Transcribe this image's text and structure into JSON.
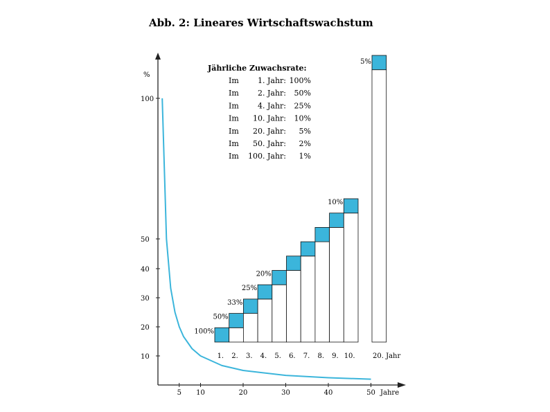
{
  "chart_data": {
    "type": "line",
    "title": "Abb. 2: Lineares Wirtschaftswachstum",
    "ylabel": "%",
    "xlabel": "Jahre",
    "colors": {
      "curve": "#3bb5db",
      "box_fill": "#3bb5db",
      "axis": "#222222"
    },
    "curve": {
      "x_ticks": [
        "5",
        "10",
        "20",
        "30",
        "40",
        "50"
      ],
      "x_values": [
        5,
        10,
        20,
        30,
        40,
        50
      ],
      "y_ticks": [
        "100",
        "50",
        "40",
        "30",
        "20",
        "10"
      ],
      "y_values": [
        100,
        50,
        40,
        30,
        20,
        10
      ],
      "x": [
        1,
        2,
        3,
        4,
        5,
        6,
        8,
        10,
        15,
        20,
        30,
        40,
        50
      ],
      "y": [
        100,
        50,
        33.3,
        25,
        20,
        16.7,
        12.5,
        10,
        6.7,
        5,
        3.3,
        2.5,
        2
      ]
    },
    "legend": {
      "title": "Jährliche Zuwachsrate:",
      "rows": [
        [
          "Im",
          "1. Jahr:",
          "100%"
        ],
        [
          "Im",
          "2. Jahr:",
          "50%"
        ],
        [
          "Im",
          "4. Jahr:",
          "25%"
        ],
        [
          "Im",
          "10. Jahr:",
          "10%"
        ],
        [
          "Im",
          "20. Jahr:",
          "5%"
        ],
        [
          "Im",
          "50. Jahr:",
          "2%"
        ],
        [
          "Im",
          "100. Jahr:",
          "1%"
        ]
      ]
    },
    "staircase": {
      "categories": [
        "1.",
        "2.",
        "3.",
        "4.",
        "5.",
        "6.",
        "7.",
        "8.",
        "9.",
        "10."
      ],
      "levels": [
        1,
        2,
        3,
        4,
        5,
        6,
        7,
        8,
        9,
        10
      ],
      "labels": [
        "100%",
        "50%",
        "33%",
        "25%",
        "20%",
        "",
        "",
        "",
        "",
        "10%"
      ],
      "tall_bar": {
        "category": "20. Jahr",
        "level": 20,
        "label": "5%"
      }
    }
  }
}
